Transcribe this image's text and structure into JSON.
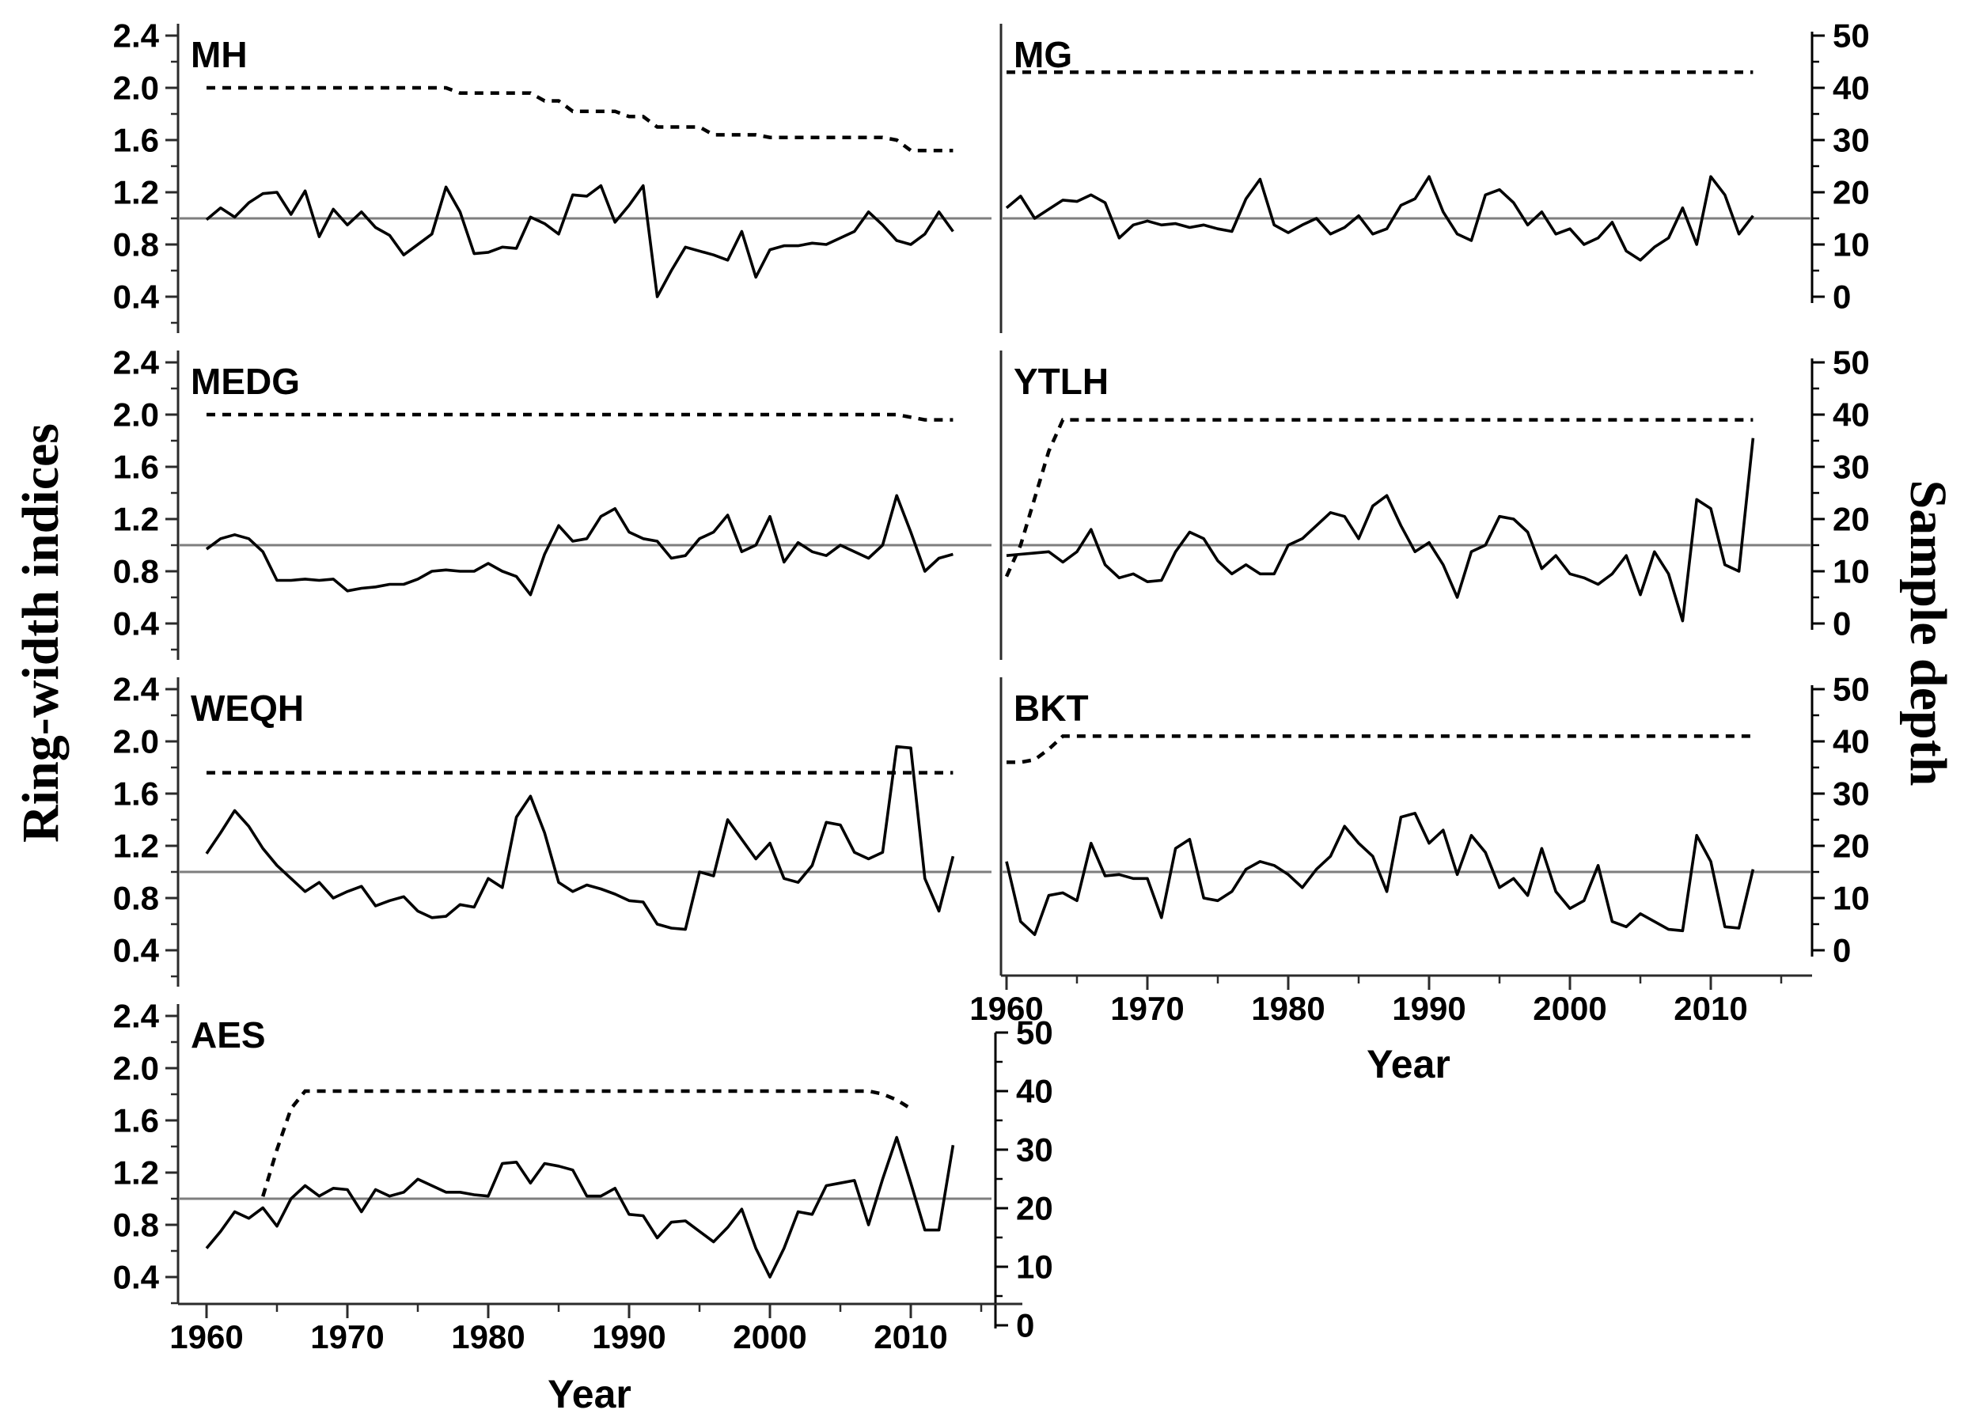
{
  "labels": {
    "y_left": "Ring-width indices",
    "y_right": "Sample depth",
    "x_axis": "Year"
  },
  "colors": {
    "series": "#000000",
    "mean_line": "#7e7e7e",
    "axis": "#2b2b2b",
    "background": "#ffffff"
  },
  "chart_data": {
    "type": "line",
    "title": "",
    "xlabel": "Year",
    "ylabel_left": "Ring-width indices",
    "ylabel_right": "Sample depth",
    "x_range": [
      1958,
      2016
    ],
    "rw_ylim": [
      0.4,
      2.4
    ],
    "depth_ylim": [
      0,
      50
    ],
    "rw_axis_ticks": [
      2.4,
      2.0,
      1.6,
      1.2,
      0.8,
      0.4
    ],
    "depth_axis_ticks": [
      50,
      40,
      30,
      20,
      10,
      0
    ],
    "year_ticks": [
      1960,
      1970,
      1980,
      1990,
      2000,
      2010
    ],
    "mean_line_value": 1.0,
    "solid_line_meaning": "ring-width index chronology",
    "dashed_line_meaning": "sample depth",
    "grid": false,
    "legend": "none",
    "years": [
      1960,
      1961,
      1962,
      1963,
      1964,
      1965,
      1966,
      1967,
      1968,
      1969,
      1970,
      1971,
      1972,
      1973,
      1974,
      1975,
      1976,
      1977,
      1978,
      1979,
      1980,
      1981,
      1982,
      1983,
      1984,
      1985,
      1986,
      1987,
      1988,
      1989,
      1990,
      1991,
      1992,
      1993,
      1994,
      1995,
      1996,
      1997,
      1998,
      1999,
      2000,
      2001,
      2002,
      2003,
      2004,
      2005,
      2006,
      2007,
      2008,
      2009,
      2010,
      2011,
      2012,
      2013
    ],
    "panels": [
      {
        "id": "MH",
        "label": "MH",
        "row": 1,
        "column": "left",
        "rwi": [
          0.99,
          1.08,
          1.01,
          1.12,
          1.19,
          1.2,
          1.03,
          1.21,
          0.86,
          1.07,
          0.95,
          1.05,
          0.93,
          0.87,
          0.72,
          0.8,
          0.88,
          1.24,
          1.05,
          0.73,
          0.74,
          0.78,
          0.77,
          1.01,
          0.96,
          0.88,
          1.18,
          1.17,
          1.25,
          0.97,
          1.1,
          1.25,
          0.4,
          0.6,
          0.78,
          0.75,
          0.72,
          0.68,
          0.9,
          0.55,
          0.76,
          0.79,
          0.79,
          0.81,
          0.8,
          0.85,
          0.9,
          1.05,
          0.95,
          0.83,
          0.8,
          0.88,
          1.05,
          0.9
        ],
        "sample_depth": [
          40,
          40,
          40,
          40,
          40,
          40,
          40,
          40,
          40,
          40,
          40,
          40,
          40,
          40,
          40,
          40,
          40,
          40,
          39,
          39,
          39,
          39,
          39,
          39,
          37.5,
          37.5,
          35.5,
          35.5,
          35.5,
          35.5,
          34.5,
          34.5,
          32.5,
          32.5,
          32.5,
          32.5,
          31,
          31,
          31,
          31,
          30.5,
          30.5,
          30.5,
          30.5,
          30.5,
          30.5,
          30.5,
          30.5,
          30.5,
          30,
          28,
          28,
          28,
          28
        ]
      },
      {
        "id": "MG",
        "label": "MG",
        "row": 1,
        "column": "right",
        "rwi": [
          1.08,
          1.17,
          1.0,
          1.07,
          1.14,
          1.13,
          1.18,
          1.12,
          0.85,
          0.95,
          0.98,
          0.95,
          0.96,
          0.93,
          0.95,
          0.92,
          0.9,
          1.15,
          1.3,
          0.95,
          0.89,
          0.95,
          1.0,
          0.88,
          0.93,
          1.02,
          0.88,
          0.92,
          1.1,
          1.15,
          1.32,
          1.05,
          0.88,
          0.83,
          1.18,
          1.22,
          1.12,
          0.95,
          1.05,
          0.88,
          0.92,
          0.8,
          0.85,
          0.97,
          0.75,
          0.68,
          0.78,
          0.85,
          1.08,
          0.8,
          1.32,
          1.18,
          0.88,
          1.02
        ],
        "sample_depth": [
          43,
          43,
          43,
          43,
          43,
          43,
          43,
          43,
          43,
          43,
          43,
          43,
          43,
          43,
          43,
          43,
          43,
          43,
          43,
          43,
          43,
          43,
          43,
          43,
          43,
          43,
          43,
          43,
          43,
          43,
          43,
          43,
          43,
          43,
          43,
          43,
          43,
          43,
          43,
          43,
          43,
          43,
          43,
          43,
          43,
          43,
          43,
          43,
          43,
          43,
          43,
          43,
          43,
          43
        ]
      },
      {
        "id": "MEDG",
        "label": "MEDG",
        "row": 2,
        "column": "left",
        "rwi": [
          0.97,
          1.05,
          1.08,
          1.05,
          0.95,
          0.73,
          0.73,
          0.74,
          0.73,
          0.74,
          0.65,
          0.67,
          0.68,
          0.7,
          0.7,
          0.74,
          0.8,
          0.81,
          0.8,
          0.8,
          0.86,
          0.8,
          0.76,
          0.62,
          0.93,
          1.15,
          1.03,
          1.05,
          1.22,
          1.28,
          1.1,
          1.05,
          1.03,
          0.9,
          0.92,
          1.05,
          1.1,
          1.23,
          0.95,
          1.0,
          1.22,
          0.87,
          1.02,
          0.95,
          0.92,
          1.0,
          0.95,
          0.9,
          1.0,
          1.38,
          1.1,
          0.8,
          0.9,
          0.93
        ],
        "sample_depth": [
          40,
          40,
          40,
          40,
          40,
          40,
          40,
          40,
          40,
          40,
          40,
          40,
          40,
          40,
          40,
          40,
          40,
          40,
          40,
          40,
          40,
          40,
          40,
          40,
          40,
          40,
          40,
          40,
          40,
          40,
          40,
          40,
          40,
          40,
          40,
          40,
          40,
          40,
          40,
          40,
          40,
          40,
          40,
          40,
          40,
          40,
          40,
          40,
          40,
          40,
          39.5,
          39,
          39,
          39
        ]
      },
      {
        "id": "YTLH",
        "label": "YTLH",
        "row": 2,
        "column": "right",
        "rwi": [
          0.92,
          0.93,
          0.94,
          0.95,
          0.87,
          0.95,
          1.12,
          0.85,
          0.75,
          0.78,
          0.72,
          0.73,
          0.95,
          1.1,
          1.05,
          0.88,
          0.78,
          0.85,
          0.78,
          0.78,
          1.0,
          1.05,
          1.15,
          1.25,
          1.22,
          1.05,
          1.3,
          1.38,
          1.15,
          0.95,
          1.02,
          0.85,
          0.6,
          0.95,
          1.0,
          1.22,
          1.2,
          1.1,
          0.82,
          0.92,
          0.78,
          0.75,
          0.7,
          0.78,
          0.92,
          0.62,
          0.95,
          0.78,
          0.42,
          1.35,
          1.28,
          0.85,
          0.8,
          1.82
        ],
        "sample_depth": [
          9,
          15,
          24,
          33,
          39,
          39,
          39,
          39,
          39,
          39,
          39,
          39,
          39,
          39,
          39,
          39,
          39,
          39,
          39,
          39,
          39,
          39,
          39,
          39,
          39,
          39,
          39,
          39,
          39,
          39,
          39,
          39,
          39,
          39,
          39,
          39,
          39,
          39,
          39,
          39,
          39,
          39,
          39,
          39,
          39,
          39,
          39,
          39,
          39,
          39,
          39,
          39,
          39,
          39
        ]
      },
      {
        "id": "WEQH",
        "label": "WEQH",
        "row": 3,
        "column": "left",
        "rwi": [
          1.14,
          1.3,
          1.47,
          1.35,
          1.18,
          1.05,
          0.95,
          0.85,
          0.92,
          0.8,
          0.85,
          0.89,
          0.74,
          0.78,
          0.81,
          0.7,
          0.65,
          0.66,
          0.75,
          0.73,
          0.95,
          0.88,
          1.42,
          1.58,
          1.3,
          0.92,
          0.85,
          0.9,
          0.87,
          0.83,
          0.78,
          0.77,
          0.6,
          0.57,
          0.56,
          1.0,
          0.97,
          1.4,
          1.25,
          1.1,
          1.22,
          0.95,
          0.92,
          1.05,
          1.38,
          1.36,
          1.15,
          1.1,
          1.15,
          1.96,
          1.95,
          0.95,
          0.7,
          1.12
        ],
        "sample_depth": [
          34,
          34,
          34,
          34,
          34,
          34,
          34,
          34,
          34,
          34,
          34,
          34,
          34,
          34,
          34,
          34,
          34,
          34,
          34,
          34,
          34,
          34,
          34,
          34,
          34,
          34,
          34,
          34,
          34,
          34,
          34,
          34,
          34,
          34,
          34,
          34,
          34,
          34,
          34,
          34,
          34,
          34,
          34,
          34,
          34,
          34,
          34,
          34,
          34,
          34,
          34,
          34,
          34,
          34
        ]
      },
      {
        "id": "BKT",
        "label": "BKT",
        "row": 3,
        "column": "right",
        "rwi": [
          1.08,
          0.62,
          0.52,
          0.82,
          0.84,
          0.78,
          1.22,
          0.97,
          0.98,
          0.95,
          0.95,
          0.65,
          1.18,
          1.25,
          0.8,
          0.78,
          0.85,
          1.02,
          1.08,
          1.05,
          0.98,
          0.88,
          1.02,
          1.12,
          1.35,
          1.22,
          1.12,
          0.85,
          1.42,
          1.45,
          1.22,
          1.32,
          0.98,
          1.28,
          1.15,
          0.88,
          0.95,
          0.82,
          1.18,
          0.85,
          0.72,
          0.78,
          1.05,
          0.62,
          0.58,
          0.68,
          0.62,
          0.56,
          0.55,
          1.28,
          1.08,
          0.58,
          0.57,
          1.02
        ],
        "sample_depth": [
          36,
          36,
          36.5,
          38.5,
          41,
          41,
          41,
          41,
          41,
          41,
          41,
          41,
          41,
          41,
          41,
          41,
          41,
          41,
          41,
          41,
          41,
          41,
          41,
          41,
          41,
          41,
          41,
          41,
          41,
          41,
          41,
          41,
          41,
          41,
          41,
          41,
          41,
          41,
          41,
          41,
          41,
          41,
          41,
          41,
          41,
          41,
          41,
          41,
          41,
          41,
          41,
          41,
          41,
          41
        ]
      },
      {
        "id": "AES",
        "label": "AES",
        "row": 4,
        "column": "left",
        "rwi": [
          0.62,
          0.75,
          0.9,
          0.85,
          0.93,
          0.79,
          1.0,
          1.1,
          1.02,
          1.08,
          1.07,
          0.9,
          1.07,
          1.02,
          1.05,
          1.15,
          1.1,
          1.05,
          1.05,
          1.03,
          1.02,
          1.27,
          1.28,
          1.12,
          1.27,
          1.25,
          1.22,
          1.02,
          1.02,
          1.08,
          0.88,
          0.87,
          0.7,
          0.82,
          0.83,
          0.75,
          0.67,
          0.78,
          0.92,
          0.62,
          0.4,
          0.62,
          0.9,
          0.88,
          1.1,
          1.12,
          1.14,
          0.8,
          1.15,
          1.47,
          1.12,
          0.76,
          0.76,
          1.41
        ],
        "sample_depth": [
          null,
          null,
          null,
          null,
          22,
          30,
          37,
          40,
          40,
          40,
          40,
          40,
          40,
          40,
          40,
          40,
          40,
          40,
          40,
          40,
          40,
          40,
          40,
          40,
          40,
          40,
          40,
          40,
          40,
          40,
          40,
          40,
          40,
          40,
          40,
          40,
          40,
          40,
          40,
          40,
          40,
          40,
          40,
          40,
          40,
          40,
          40,
          40,
          39.5,
          38.5,
          37,
          null,
          null,
          null
        ]
      }
    ]
  }
}
